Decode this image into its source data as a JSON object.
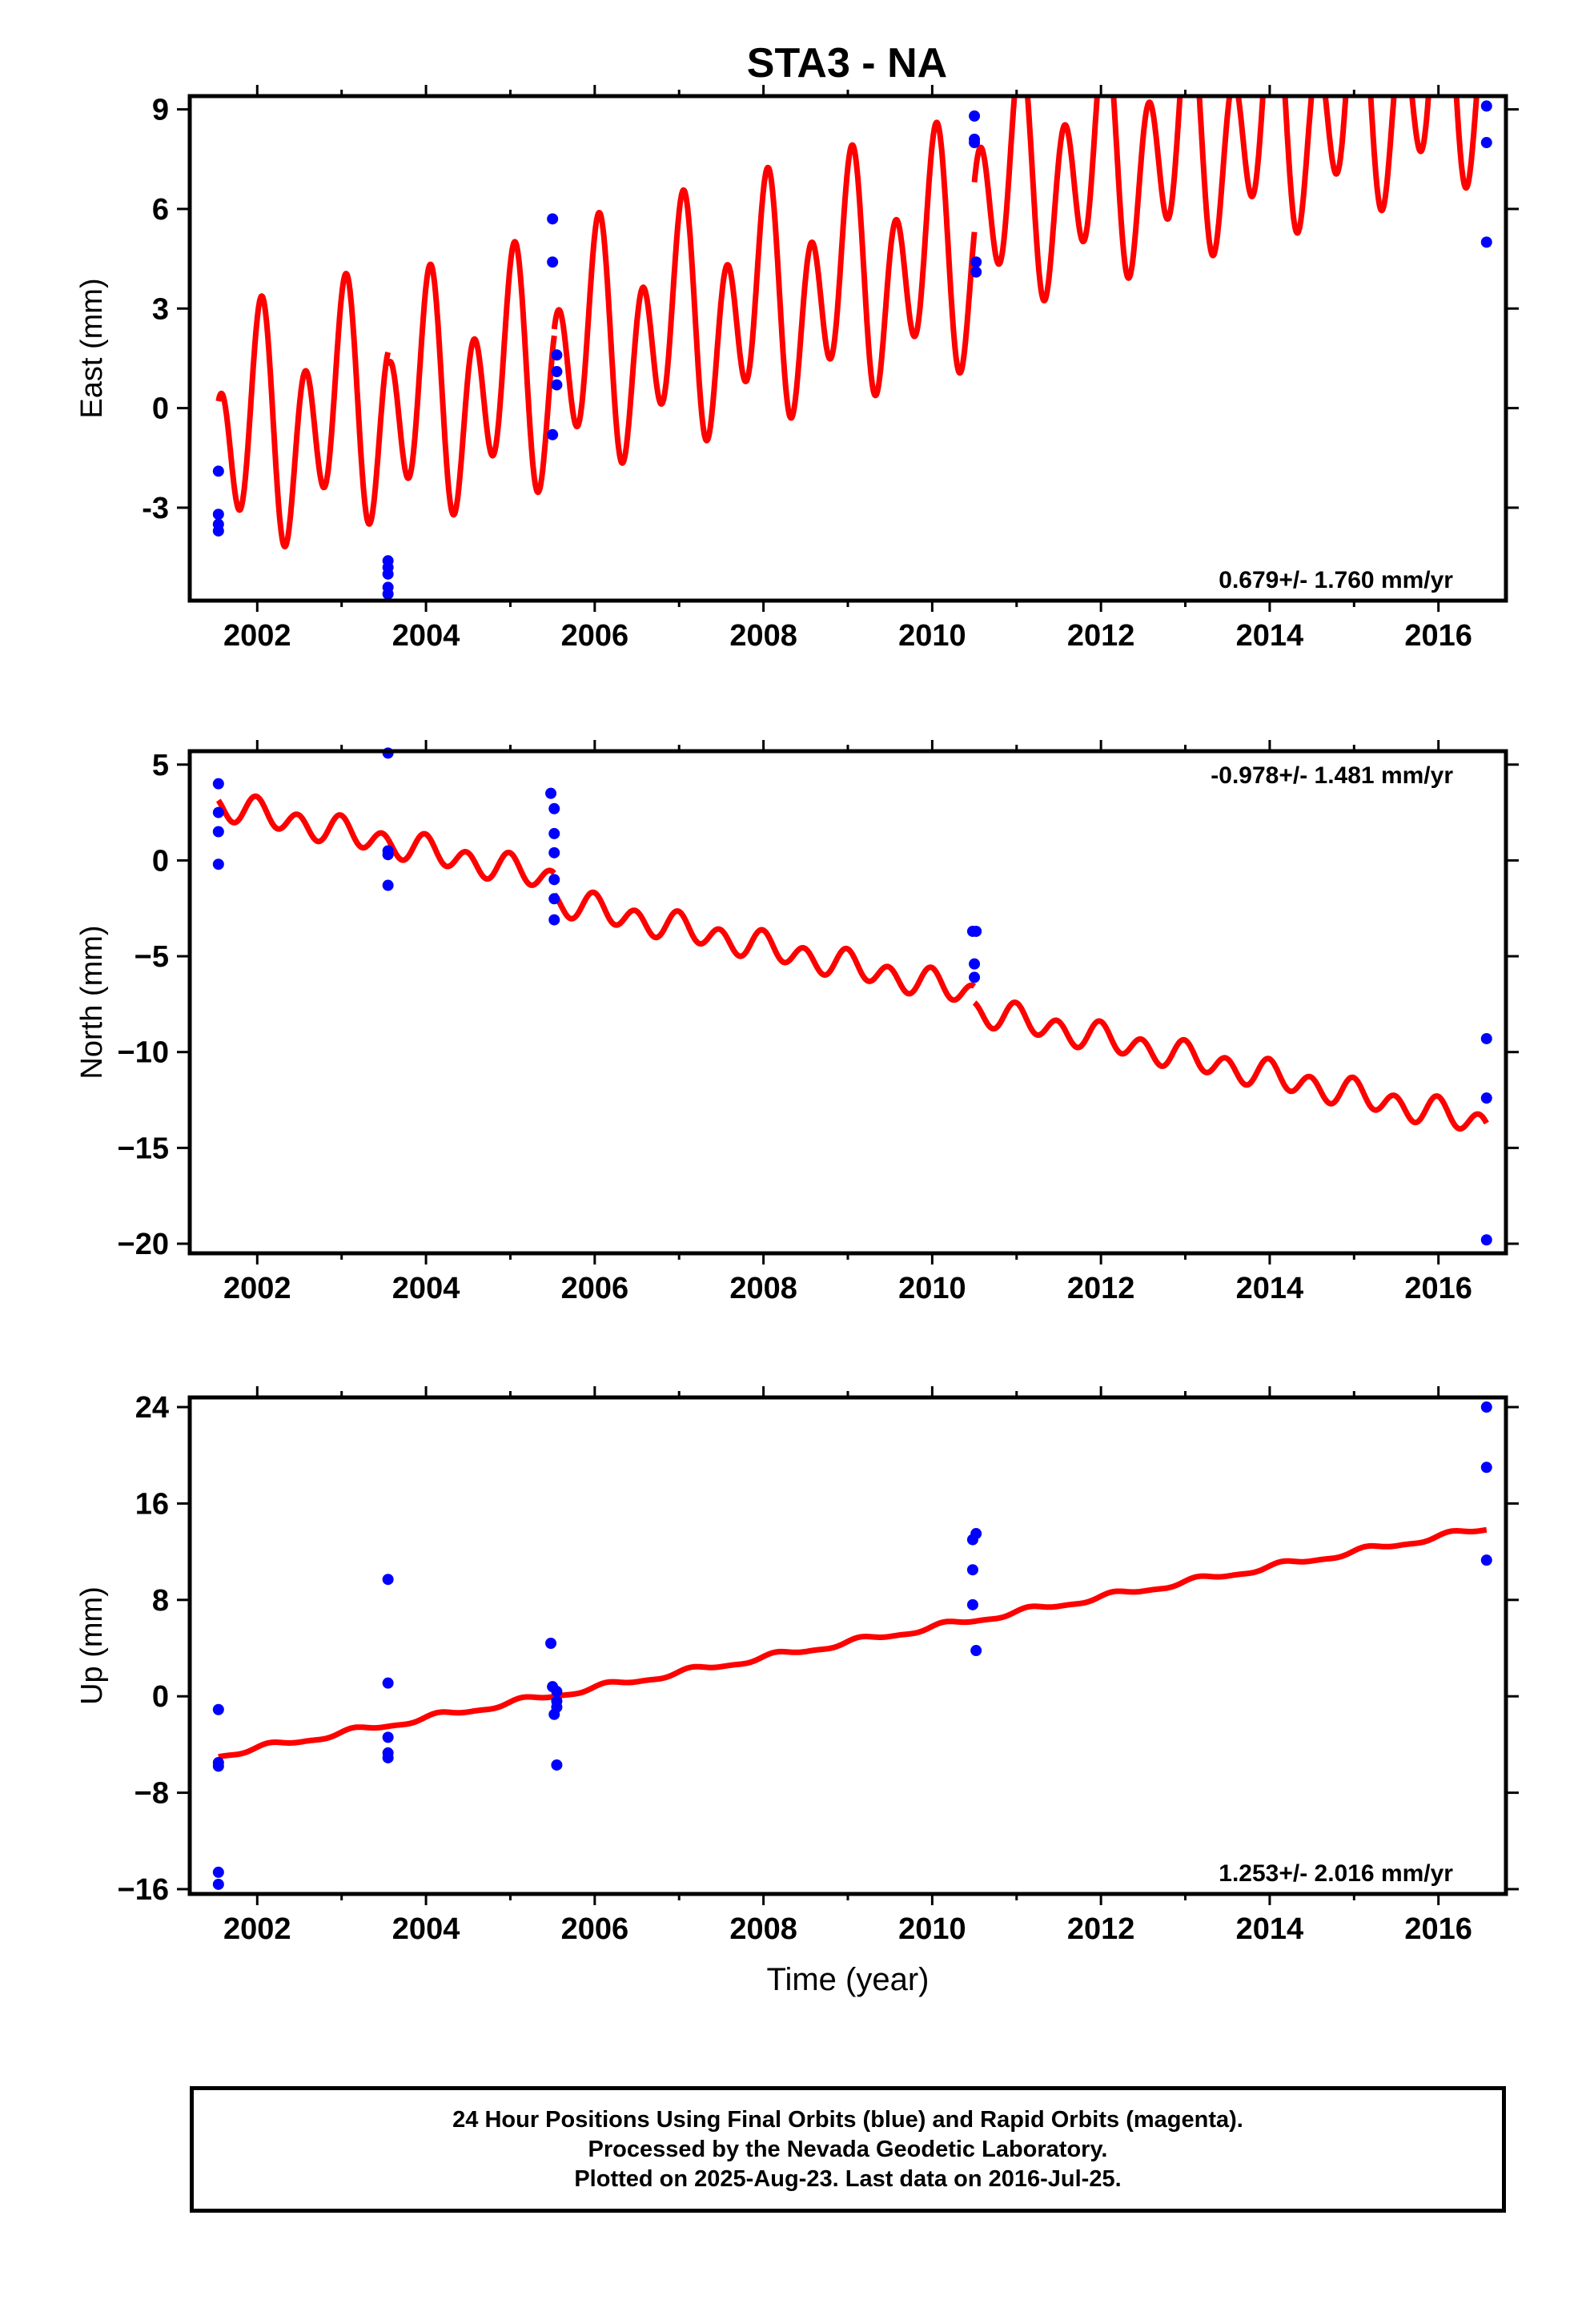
{
  "title": "STA3 - NA",
  "colors": {
    "model": "#ff0000",
    "final_orbits": "#0000ff",
    "axes": "#000000"
  },
  "chart_data": [
    {
      "name": "east",
      "type": "scatter",
      "ylabel": "East (mm)",
      "xlabel": "",
      "xlim": [
        2001.2,
        2016.8
      ],
      "ylim": [
        -5.8,
        9.4
      ],
      "xticks": [
        2002,
        2004,
        2006,
        2008,
        2010,
        2012,
        2014,
        2016
      ],
      "xtick_labels": [
        "2002",
        "2004",
        "2006",
        "2008",
        "2010",
        "2012",
        "2014",
        "2016"
      ],
      "yticks": [
        -3,
        0,
        3,
        6,
        9
      ],
      "ytick_labels": [
        "-3",
        "0",
        "3",
        "6",
        "9"
      ],
      "rate_label": "0.679+/- 1.760 mm/yr",
      "rate_position": "bottom-right",
      "points": [
        [
          2001.54,
          -1.9
        ],
        [
          2001.54,
          -3.2
        ],
        [
          2001.54,
          -3.5
        ],
        [
          2001.54,
          -3.7
        ],
        [
          2003.55,
          -4.6
        ],
        [
          2003.55,
          -4.8
        ],
        [
          2003.55,
          -5.0
        ],
        [
          2003.55,
          -5.4
        ],
        [
          2003.55,
          -5.6
        ],
        [
          2005.5,
          5.7
        ],
        [
          2005.5,
          4.4
        ],
        [
          2005.55,
          1.6
        ],
        [
          2005.55,
          1.1
        ],
        [
          2005.55,
          0.7
        ],
        [
          2005.5,
          -0.8
        ],
        [
          2010.5,
          8.8
        ],
        [
          2010.5,
          8.1
        ],
        [
          2010.5,
          8.0
        ],
        [
          2010.52,
          4.4
        ],
        [
          2010.52,
          4.1
        ],
        [
          2016.57,
          9.1
        ],
        [
          2016.57,
          8.0
        ],
        [
          2016.57,
          5.0
        ]
      ],
      "model": {
        "segments": [
          [
            2001.54,
            2003.55
          ],
          [
            2003.55,
            2005.52
          ],
          [
            2005.52,
            2010.5
          ],
          [
            2010.5,
            2016.57
          ]
        ],
        "offsets": [
          -1.1,
          -1.5,
          -1.3,
          0.2
        ],
        "rate": 0.679,
        "t0": 2001.54,
        "annual": {
          "amplitude": 1.5,
          "phase": 1.7
        },
        "semiannual": {
          "amplitude": 2.8,
          "phase": 0.8
        }
      }
    },
    {
      "name": "north",
      "type": "scatter",
      "ylabel": "North (mm)",
      "xlabel": "",
      "xlim": [
        2001.2,
        2016.8
      ],
      "ylim": [
        -20.5,
        5.7
      ],
      "xticks": [
        2002,
        2004,
        2006,
        2008,
        2010,
        2012,
        2014,
        2016
      ],
      "xtick_labels": [
        "2002",
        "2004",
        "2006",
        "2008",
        "2010",
        "2012",
        "2014",
        "2016"
      ],
      "yticks": [
        -20,
        -15,
        -10,
        -5,
        0,
        5
      ],
      "ytick_labels": [
        "−20",
        "−15",
        "−10",
        "−5",
        "0",
        "5"
      ],
      "rate_label": "-0.978+/- 1.481 mm/yr",
      "rate_position": "top-right",
      "points": [
        [
          2001.54,
          4.0
        ],
        [
          2001.54,
          2.5
        ],
        [
          2001.54,
          1.5
        ],
        [
          2001.54,
          -0.2
        ],
        [
          2003.55,
          5.6
        ],
        [
          2003.55,
          0.5
        ],
        [
          2003.55,
          0.3
        ],
        [
          2003.55,
          -1.3
        ],
        [
          2005.48,
          3.5
        ],
        [
          2005.52,
          2.7
        ],
        [
          2005.52,
          1.4
        ],
        [
          2005.52,
          0.4
        ],
        [
          2005.52,
          -1.0
        ],
        [
          2005.52,
          -2.0
        ],
        [
          2005.52,
          -3.1
        ],
        [
          2010.48,
          -3.7
        ],
        [
          2010.52,
          -3.7
        ],
        [
          2010.5,
          -5.4
        ],
        [
          2010.5,
          -6.1
        ],
        [
          2016.57,
          -9.3
        ],
        [
          2016.57,
          -12.4
        ],
        [
          2016.57,
          -19.8
        ]
      ],
      "model": {
        "segments": [
          [
            2001.54,
            2003.55
          ],
          [
            2003.55,
            2005.52
          ],
          [
            2005.52,
            2010.5
          ],
          [
            2010.5,
            2016.57
          ]
        ],
        "offsets": [
          2.9,
          2.9,
          1.8,
          0.95
        ],
        "rate": -0.978,
        "t0": 2001.54,
        "annual": {
          "amplitude": 0.25,
          "phase": 1.3
        },
        "semiannual": {
          "amplitude": 0.65,
          "phase": 1.8
        }
      }
    },
    {
      "name": "up",
      "type": "scatter",
      "ylabel": "Up (mm)",
      "xlabel": "Time (year)",
      "xlim": [
        2001.2,
        2016.8
      ],
      "ylim": [
        -16.4,
        24.8
      ],
      "xticks": [
        2002,
        2004,
        2006,
        2008,
        2010,
        2012,
        2014,
        2016
      ],
      "xtick_labels": [
        "2002",
        "2004",
        "2006",
        "2008",
        "2010",
        "2012",
        "2014",
        "2016"
      ],
      "yticks": [
        -16,
        -8,
        0,
        8,
        16,
        24
      ],
      "ytick_labels": [
        "−16",
        "−8",
        "0",
        "8",
        "16",
        "24"
      ],
      "rate_label": "1.253+/- 2.016 mm/yr",
      "rate_position": "bottom-right",
      "points": [
        [
          2001.54,
          -1.1
        ],
        [
          2001.54,
          -5.5
        ],
        [
          2001.54,
          -5.8
        ],
        [
          2001.54,
          -14.6
        ],
        [
          2001.54,
          -15.6
        ],
        [
          2003.55,
          9.7
        ],
        [
          2003.55,
          1.1
        ],
        [
          2003.55,
          -3.4
        ],
        [
          2003.55,
          -4.7
        ],
        [
          2003.55,
          -5.1
        ],
        [
          2005.48,
          4.4
        ],
        [
          2005.5,
          0.8
        ],
        [
          2005.55,
          0.4
        ],
        [
          2005.55,
          -0.4
        ],
        [
          2005.55,
          -0.9
        ],
        [
          2005.52,
          -1.5
        ],
        [
          2005.55,
          -5.7
        ],
        [
          2010.52,
          13.5
        ],
        [
          2010.48,
          13.0
        ],
        [
          2010.48,
          10.5
        ],
        [
          2010.48,
          7.6
        ],
        [
          2010.52,
          3.8
        ],
        [
          2016.57,
          24.0
        ],
        [
          2016.57,
          19.0
        ],
        [
          2016.57,
          11.3
        ]
      ],
      "model": {
        "segments": [
          [
            2001.54,
            2016.57
          ]
        ],
        "offsets": [
          -4.9
        ],
        "rate": 1.253,
        "t0": 2001.54,
        "annual": {
          "amplitude": 0.22,
          "phase": 0.5
        },
        "semiannual": {
          "amplitude": 0.08,
          "phase": 0.0
        }
      }
    }
  ],
  "footer": {
    "line1": "24 Hour Positions Using Final Orbits (blue) and Rapid Orbits (magenta).",
    "line2": "Processed by the Nevada Geodetic Laboratory.",
    "line3": "Plotted on 2025-Aug-23. Last data on 2016-Jul-25."
  }
}
